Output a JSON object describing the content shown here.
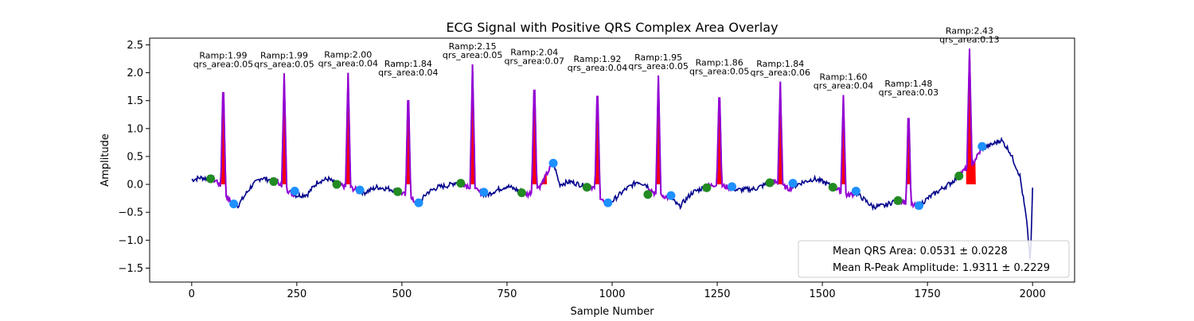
{
  "chart_data": {
    "type": "line",
    "title": "ECG Signal with Positive QRS Complex Area Overlay",
    "xlabel": "Sample Number",
    "ylabel": "Amplitude",
    "xlim": [
      -100,
      2100
    ],
    "ylim": [
      -1.75,
      2.62
    ],
    "x_ticks": [
      0,
      250,
      500,
      750,
      1000,
      1250,
      1500,
      1750,
      2000
    ],
    "y_ticks": [
      -1.5,
      -1.0,
      -0.5,
      0.0,
      0.5,
      1.0,
      1.5,
      2.0,
      2.5
    ],
    "x_tick_labels": [
      "0",
      "250",
      "500",
      "750",
      "1000",
      "1250",
      "1500",
      "1750",
      "2000"
    ],
    "y_tick_labels": [
      "−1.5",
      "−1.0",
      "−0.5",
      "0.0",
      "0.5",
      "1.0",
      "1.5",
      "2.0",
      "2.5"
    ],
    "grid": false,
    "colors": {
      "signal": "#00008b",
      "qrs_segment": "#9400d3",
      "qrs_area": "#ff0000",
      "onset_marker": "#228b22",
      "offset_marker": "#1e90ff"
    },
    "baseline_points": [
      [
        0,
        0.08
      ],
      [
        20,
        0.12
      ],
      [
        45,
        0.1
      ],
      [
        60,
        0.06
      ],
      [
        95,
        -0.35
      ],
      [
        110,
        -0.38
      ],
      [
        140,
        -0.05
      ],
      [
        165,
        0.12
      ],
      [
        185,
        0.08
      ],
      [
        205,
        0.05
      ],
      [
        235,
        -0.15
      ],
      [
        250,
        -0.2
      ],
      [
        275,
        -0.18
      ],
      [
        300,
        0.05
      ],
      [
        325,
        0.1
      ],
      [
        345,
        0.0
      ],
      [
        375,
        -0.05
      ],
      [
        410,
        -0.15
      ],
      [
        440,
        -0.05
      ],
      [
        470,
        -0.08
      ],
      [
        495,
        -0.13
      ],
      [
        525,
        -0.28
      ],
      [
        540,
        -0.35
      ],
      [
        560,
        -0.15
      ],
      [
        585,
        -0.05
      ],
      [
        610,
        -0.02
      ],
      [
        630,
        0.04
      ],
      [
        650,
        0.0
      ],
      [
        700,
        -0.2
      ],
      [
        720,
        -0.12
      ],
      [
        750,
        -0.03
      ],
      [
        785,
        -0.13
      ],
      [
        800,
        -0.18
      ],
      [
        830,
        -0.02
      ],
      [
        860,
        0.4
      ],
      [
        875,
        0.0
      ],
      [
        900,
        0.05
      ],
      [
        935,
        -0.03
      ],
      [
        955,
        -0.05
      ],
      [
        985,
        -0.37
      ],
      [
        1000,
        -0.3
      ],
      [
        1030,
        -0.1
      ],
      [
        1060,
        0.05
      ],
      [
        1080,
        0.0
      ],
      [
        1100,
        -0.15
      ],
      [
        1140,
        -0.25
      ],
      [
        1160,
        -0.4
      ],
      [
        1190,
        -0.15
      ],
      [
        1220,
        -0.05
      ],
      [
        1245,
        0.0
      ],
      [
        1275,
        -0.05
      ],
      [
        1300,
        -0.1
      ],
      [
        1340,
        -0.08
      ],
      [
        1375,
        0.03
      ],
      [
        1390,
        0.04
      ],
      [
        1420,
        -0.08
      ],
      [
        1450,
        0.03
      ],
      [
        1480,
        0.1
      ],
      [
        1500,
        0.05
      ],
      [
        1525,
        -0.04
      ],
      [
        1560,
        -0.2
      ],
      [
        1580,
        -0.15
      ],
      [
        1620,
        -0.4
      ],
      [
        1650,
        -0.38
      ],
      [
        1675,
        -0.28
      ],
      [
        1690,
        -0.3
      ],
      [
        1725,
        -0.4
      ],
      [
        1760,
        -0.2
      ],
      [
        1790,
        -0.05
      ],
      [
        1810,
        0.05
      ],
      [
        1830,
        0.2
      ],
      [
        1860,
        0.4
      ],
      [
        1880,
        0.65
      ],
      [
        1900,
        0.7
      ],
      [
        1925,
        0.8
      ],
      [
        1945,
        0.6
      ],
      [
        1970,
        0.15
      ],
      [
        1985,
        -0.6
      ],
      [
        1995,
        -1.4
      ],
      [
        2000,
        -0.1
      ]
    ],
    "beats": [
      {
        "onset": 45,
        "peak": 75,
        "offset": 100,
        "r_amplitude": 1.99,
        "area_label": "Ramp:1.99",
        "qrs_label": "qrs_area:0.05",
        "onset_y": 0.1,
        "offset_y": -0.35
      },
      {
        "onset": 195,
        "peak": 220,
        "offset": 245,
        "r_amplitude": 1.99,
        "area_label": "Ramp:1.99",
        "qrs_label": "qrs_area:0.05",
        "onset_y": 0.05,
        "offset_y": -0.12
      },
      {
        "onset": 345,
        "peak": 372,
        "offset": 400,
        "r_amplitude": 2.0,
        "area_label": "Ramp:2.00",
        "qrs_label": "qrs_area:0.04",
        "onset_y": 0.0,
        "offset_y": -0.1
      },
      {
        "onset": 490,
        "peak": 515,
        "offset": 540,
        "r_amplitude": 1.84,
        "area_label": "Ramp:1.84",
        "qrs_label": "qrs_area:0.04",
        "onset_y": -0.13,
        "offset_y": -0.33
      },
      {
        "onset": 640,
        "peak": 668,
        "offset": 695,
        "r_amplitude": 2.15,
        "area_label": "Ramp:2.15",
        "qrs_label": "qrs_area:0.05",
        "onset_y": 0.02,
        "offset_y": -0.14
      },
      {
        "onset": 785,
        "peak": 815,
        "offset": 860,
        "r_amplitude": 2.04,
        "area_label": "Ramp:2.04",
        "qrs_label": "qrs_area:0.07",
        "onset_y": -0.15,
        "offset_y": 0.38
      },
      {
        "onset": 940,
        "peak": 965,
        "offset": 990,
        "r_amplitude": 1.92,
        "area_label": "Ramp:1.92",
        "qrs_label": "qrs_area:0.04",
        "onset_y": -0.05,
        "offset_y": -0.33
      },
      {
        "onset": 1085,
        "peak": 1110,
        "offset": 1140,
        "r_amplitude": 1.95,
        "area_label": "Ramp:1.95",
        "qrs_label": "qrs_area:0.05",
        "onset_y": -0.18,
        "offset_y": -0.2
      },
      {
        "onset": 1225,
        "peak": 1255,
        "offset": 1285,
        "r_amplitude": 1.86,
        "area_label": "Ramp:1.86",
        "qrs_label": "qrs_area:0.05",
        "onset_y": -0.06,
        "offset_y": -0.04
      },
      {
        "onset": 1375,
        "peak": 1400,
        "offset": 1430,
        "r_amplitude": 1.84,
        "area_label": "Ramp:1.84",
        "qrs_label": "qrs_area:0.06",
        "onset_y": 0.03,
        "offset_y": 0.02
      },
      {
        "onset": 1525,
        "peak": 1550,
        "offset": 1580,
        "r_amplitude": 1.6,
        "area_label": "Ramp:1.60",
        "qrs_label": "qrs_area:0.04",
        "onset_y": -0.05,
        "offset_y": -0.12
      },
      {
        "onset": 1680,
        "peak": 1705,
        "offset": 1730,
        "r_amplitude": 1.48,
        "area_label": "Ramp:1.48",
        "qrs_label": "qrs_area:0.03",
        "onset_y": -0.29,
        "offset_y": -0.38
      },
      {
        "onset": 1825,
        "peak": 1850,
        "offset": 1880,
        "r_amplitude": 2.43,
        "area_label": "Ramp:2.43",
        "qrs_label": "qrs_area:0.13",
        "onset_y": 0.15,
        "offset_y": 0.68
      }
    ],
    "legend": {
      "position": "lower-right",
      "entries": [
        "Mean QRS Area: 0.0531 ± 0.0228",
        "Mean R-Peak Amplitude: 1.9311 ± 0.2229"
      ]
    }
  }
}
